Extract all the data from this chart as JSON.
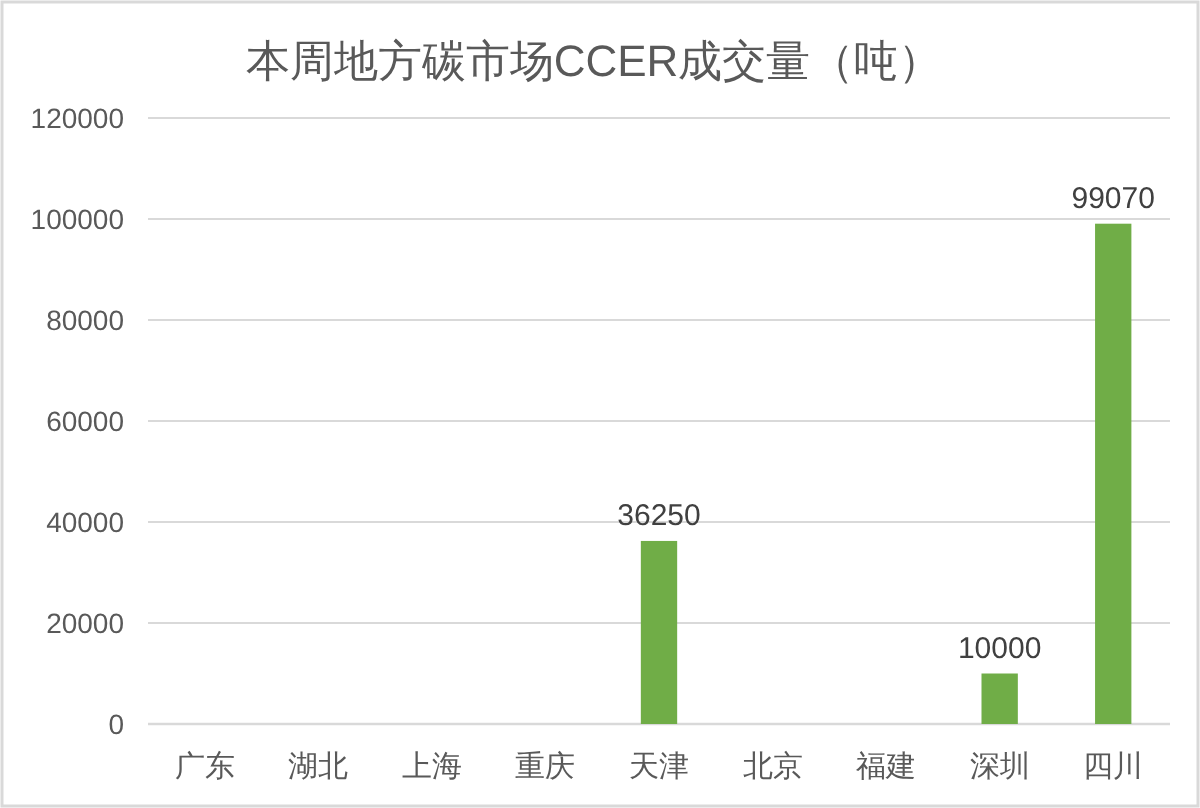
{
  "chart_data": {
    "type": "bar",
    "title": "本周地方碳市场CCER成交量（吨）",
    "categories": [
      "广东",
      "湖北",
      "上海",
      "重庆",
      "天津",
      "北京",
      "福建",
      "深圳",
      "四川"
    ],
    "values": [
      0,
      0,
      0,
      0,
      36250,
      0,
      0,
      10000,
      99070
    ],
    "value_labels": [
      null,
      null,
      null,
      null,
      "36250",
      null,
      null,
      "10000",
      "99070"
    ],
    "color": "#70ad47",
    "ylim": [
      0,
      120000
    ],
    "yticks": [
      0,
      20000,
      40000,
      60000,
      80000,
      100000,
      120000
    ],
    "grid": "y"
  }
}
